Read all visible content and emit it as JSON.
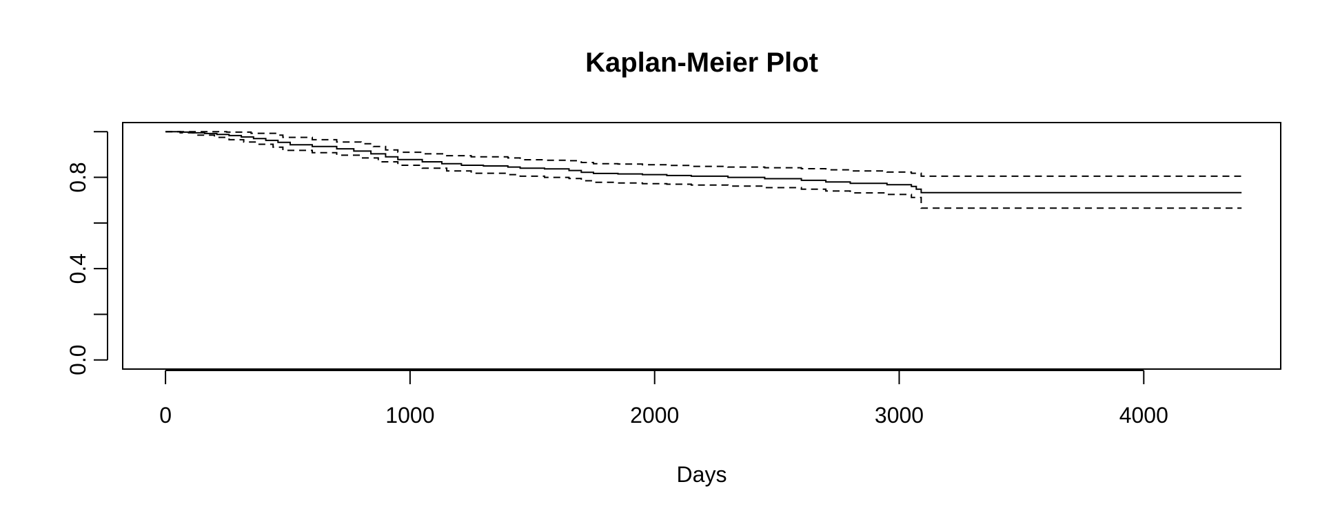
{
  "chart_data": {
    "type": "line",
    "title": "Kaplan-Meier Plot",
    "xlabel": "Days",
    "ylabel": "",
    "xlim": [
      -175,
      4560
    ],
    "ylim": [
      -0.04,
      1.04
    ],
    "x_ticks": [
      0,
      1000,
      2000,
      3000,
      4000
    ],
    "x_tick_labels": [
      "0",
      "1000",
      "2000",
      "3000",
      "4000"
    ],
    "y_ticks": [
      0.0,
      0.2,
      0.4,
      0.6,
      0.8,
      1.0
    ],
    "y_tick_labels": [
      "0.0",
      "",
      "0.4",
      "",
      "0.8",
      ""
    ],
    "grid": false,
    "legend": "none",
    "series": [
      {
        "role": "estimate",
        "dash": "solid",
        "x": [
          0,
          60,
          110,
          160,
          210,
          260,
          310,
          360,
          410,
          460,
          510,
          600,
          700,
          770,
          840,
          900,
          950,
          1050,
          1130,
          1210,
          1300,
          1400,
          1450,
          1550,
          1650,
          1700,
          1750,
          1850,
          1950,
          2050,
          2150,
          2300,
          2450,
          2600,
          2700,
          2800,
          2950,
          3050,
          3070,
          3090,
          3200,
          4400
        ],
        "y": [
          1.0,
          0.998,
          0.995,
          0.992,
          0.988,
          0.983,
          0.977,
          0.97,
          0.962,
          0.953,
          0.943,
          0.935,
          0.925,
          0.915,
          0.903,
          0.89,
          0.878,
          0.868,
          0.86,
          0.853,
          0.85,
          0.845,
          0.84,
          0.837,
          0.83,
          0.822,
          0.817,
          0.815,
          0.812,
          0.808,
          0.805,
          0.8,
          0.794,
          0.787,
          0.78,
          0.774,
          0.768,
          0.76,
          0.748,
          0.733,
          0.733,
          0.733
        ]
      },
      {
        "role": "upper",
        "dash": "dashed",
        "x": [
          0,
          150,
          250,
          350,
          450,
          480,
          600,
          700,
          800,
          850,
          900,
          950,
          1050,
          1150,
          1250,
          1400,
          1450,
          1550,
          1650,
          1700,
          1750,
          1850,
          1950,
          2050,
          2150,
          2300,
          2450,
          2600,
          2700,
          2800,
          2950,
          3050,
          3090,
          3200,
          4400
        ],
        "y": [
          1.0,
          1.0,
          0.998,
          0.993,
          0.985,
          0.975,
          0.965,
          0.955,
          0.947,
          0.935,
          0.92,
          0.91,
          0.903,
          0.895,
          0.89,
          0.885,
          0.877,
          0.875,
          0.873,
          0.865,
          0.86,
          0.858,
          0.855,
          0.852,
          0.848,
          0.845,
          0.842,
          0.838,
          0.833,
          0.828,
          0.823,
          0.818,
          0.805,
          0.805,
          0.805
        ]
      },
      {
        "role": "lower",
        "dash": "dashed",
        "x": [
          0,
          60,
          130,
          200,
          260,
          320,
          380,
          440,
          480,
          600,
          700,
          800,
          870,
          950,
          1050,
          1150,
          1250,
          1400,
          1450,
          1550,
          1650,
          1700,
          1750,
          1850,
          1950,
          2050,
          2150,
          2300,
          2450,
          2600,
          2700,
          2800,
          2950,
          3050,
          3090,
          3200,
          4400
        ],
        "y": [
          1.0,
          0.995,
          0.985,
          0.975,
          0.965,
          0.955,
          0.945,
          0.932,
          0.918,
          0.908,
          0.897,
          0.885,
          0.868,
          0.853,
          0.84,
          0.828,
          0.818,
          0.812,
          0.805,
          0.8,
          0.795,
          0.785,
          0.778,
          0.775,
          0.772,
          0.77,
          0.766,
          0.762,
          0.755,
          0.748,
          0.74,
          0.732,
          0.725,
          0.712,
          0.665,
          0.665,
          0.665
        ]
      }
    ]
  }
}
